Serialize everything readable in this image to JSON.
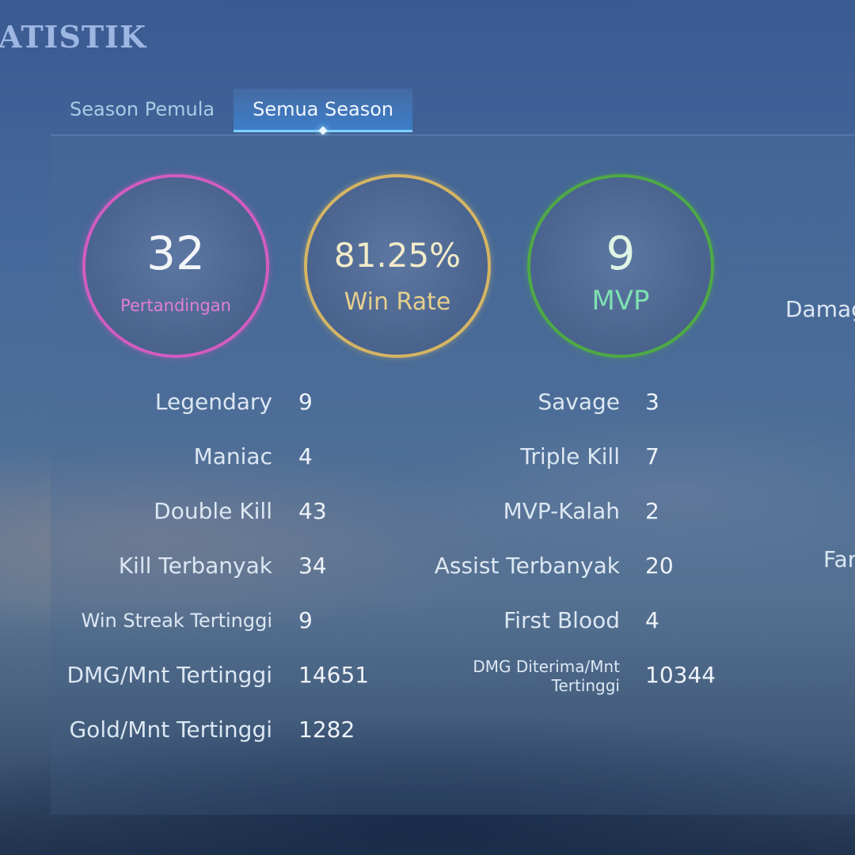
{
  "header": {
    "title": "ATISTIK"
  },
  "tabs": [
    {
      "label": "Season Pemula",
      "active": false
    },
    {
      "label": "Semua Season",
      "active": true
    }
  ],
  "summary": {
    "matches": {
      "value": "32",
      "label": "Pertandingan",
      "color": "#d25cc0"
    },
    "win_rate": {
      "value": "81.25%",
      "label": "Win Rate",
      "color": "#d4b563"
    },
    "mvp": {
      "value": "9",
      "label": "MVP",
      "color": "#4faa45"
    }
  },
  "stats_left": [
    {
      "label": "Legendary",
      "value": "9"
    },
    {
      "label": "Maniac",
      "value": "4"
    },
    {
      "label": "Double Kill",
      "value": "43"
    },
    {
      "label": "Kill Terbanyak",
      "value": "34"
    },
    {
      "label": "Win Streak Tertinggi",
      "value": "9"
    },
    {
      "label": "DMG/Mnt Tertinggi",
      "value": "14651"
    },
    {
      "label": "Gold/Mnt Tertinggi",
      "value": "1282"
    }
  ],
  "stats_right": [
    {
      "label": "Savage",
      "value": "3"
    },
    {
      "label": "Triple Kill",
      "value": "7"
    },
    {
      "label": "MVP-Kalah",
      "value": "2"
    },
    {
      "label": "Assist Terbanyak",
      "value": "20"
    },
    {
      "label": "First Blood",
      "value": "4"
    },
    {
      "label": "DMG Diterima/Mnt Tertinggi",
      "value": "10344"
    }
  ],
  "side_labels": {
    "top": "Damag",
    "bottom": "Far"
  }
}
